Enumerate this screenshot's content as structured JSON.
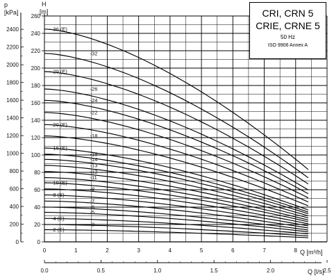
{
  "title_block": {
    "line1": "CRI, CRN 5",
    "line2": "CRIE, CRNE 5",
    "line3": "50 Hz",
    "line4": "ISO 9906 Annex A"
  },
  "chart_data": {
    "type": "line",
    "left_axis": {
      "label_symbol": "p",
      "unit": "[kPa]",
      "ticks": [
        0,
        200,
        400,
        600,
        800,
        1000,
        1200,
        1400,
        1600,
        1800,
        2000,
        2200,
        2400
      ]
    },
    "head_axis": {
      "label_symbol": "H",
      "unit": "[m]",
      "range": [
        0,
        260
      ],
      "ticks": [
        0,
        20,
        40,
        60,
        80,
        100,
        120,
        140,
        160,
        180,
        200,
        220,
        240,
        260
      ]
    },
    "x_axis_primary": {
      "label": "Q [m³/h]",
      "range": [
        0,
        9
      ],
      "ticks": [
        0,
        1,
        2,
        3,
        4,
        5,
        6,
        7,
        8
      ]
    },
    "x_axis_secondary": {
      "label": "Q [l/s]",
      "ticks": [
        "0.0",
        "0.5",
        "1.0",
        "1.5",
        "2.0",
        "2.5"
      ],
      "tick_values": [
        0,
        0.5,
        1.0,
        1.5,
        2.0,
        2.5
      ]
    },
    "grid": true,
    "series_end_flow": 8.4,
    "series": [
      {
        "label": "-2 (E)",
        "h0": 14
      },
      {
        "label": "-3",
        "h0": 20
      },
      {
        "label": "-4 (E)",
        "h0": 27
      },
      {
        "label": "-5",
        "h0": 34
      },
      {
        "label": "-6",
        "h0": 40
      },
      {
        "label": "-7",
        "h0": 47
      },
      {
        "label": "-8 (E)",
        "h0": 54
      },
      {
        "label": "-9",
        "h0": 61
      },
      {
        "label": "-10 (E)",
        "h0": 68
      },
      {
        "label": "-11",
        "h0": 74
      },
      {
        "label": "-12",
        "h0": 81
      },
      {
        "label": "-13",
        "h0": 88
      },
      {
        "label": "-14",
        "h0": 95
      },
      {
        "label": "-15",
        "h0": 101
      },
      {
        "label": "-16 (E)",
        "h0": 108
      },
      {
        "label": "-18",
        "h0": 122
      },
      {
        "label": "-20 (E)",
        "h0": 135
      },
      {
        "label": "-22",
        "h0": 149
      },
      {
        "label": "-24",
        "h0": 163
      },
      {
        "label": "-26",
        "h0": 176
      },
      {
        "label": "-29 (E)",
        "h0": 196
      },
      {
        "label": "-32",
        "h0": 217
      },
      {
        "label": "-36 (E)",
        "h0": 245
      }
    ],
    "end_head_fraction": 0.34
  }
}
